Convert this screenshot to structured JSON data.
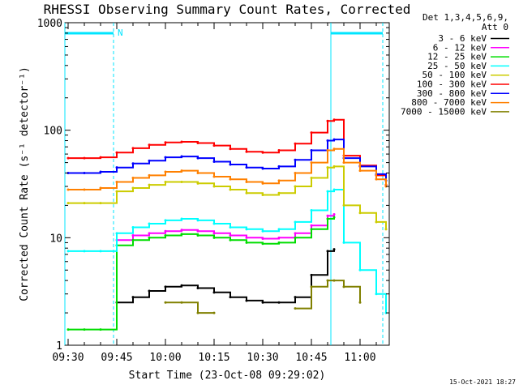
{
  "chart_data": {
    "type": "line",
    "title": "RHESSI Observing Summary Count Rates, Corrected",
    "xlabel": "Start Time (23-Oct-08 09:29:02)",
    "ylabel": "Corrected Count Rate (s⁻¹ detector⁻¹)",
    "y_scale": "log",
    "ylim": [
      1,
      1000
    ],
    "xlim": [
      "09:29",
      "11:09"
    ],
    "x_ticks": [
      "09:30",
      "09:45",
      "10:00",
      "10:15",
      "10:30",
      "10:45",
      "11:00"
    ],
    "y_ticks": [
      "1",
      "10",
      "100",
      "1000"
    ],
    "grid": false,
    "legend_position": "right",
    "legend_header": [
      "Det 1,3,4,5,6,9,",
      "Att 0"
    ],
    "footer_timestamp": "15-Oct-2021 18:27",
    "flag_text": "N",
    "flag_color": "#00e5ff",
    "bars": [
      {
        "start": "09:29",
        "end": "09:44"
      },
      {
        "start": "10:51",
        "end": "11:07"
      }
    ],
    "x": [
      "09:30",
      "09:35",
      "09:40",
      "09:45",
      "09:50",
      "09:55",
      "10:00",
      "10:05",
      "10:10",
      "10:15",
      "10:20",
      "10:25",
      "10:30",
      "10:35",
      "10:40",
      "10:45",
      "10:50",
      "10:52",
      "10:55",
      "11:00",
      "11:05",
      "11:08"
    ],
    "series": [
      {
        "name": "3 - 6 keV",
        "color": "#000000",
        "values": [
          null,
          null,
          null,
          2.5,
          2.8,
          3.2,
          3.5,
          3.6,
          3.4,
          3.1,
          2.8,
          2.6,
          2.5,
          2.5,
          2.8,
          4.5,
          7.5,
          7.8,
          null,
          null,
          null,
          null
        ]
      },
      {
        "name": "6 - 12 keV",
        "color": "#ff00ff",
        "values": [
          null,
          null,
          null,
          9.5,
          10.5,
          11,
          11.5,
          11.8,
          11.5,
          11,
          10.5,
          10,
          9.8,
          10,
          11,
          13,
          16,
          16.5,
          null,
          null,
          null,
          null
        ]
      },
      {
        "name": "12 - 25 keV",
        "color": "#00dd00",
        "values": [
          1.4,
          1.4,
          1.4,
          8.5,
          9.5,
          10,
          10.5,
          10.8,
          10.5,
          10,
          9.5,
          9,
          8.8,
          9,
          10,
          12,
          15,
          15.5,
          null,
          null,
          null,
          null
        ]
      },
      {
        "name": "25 - 50 keV",
        "color": "#00ffff",
        "values": [
          7.5,
          7.5,
          7.5,
          11,
          12.5,
          13.5,
          14.5,
          15,
          14.5,
          13.5,
          12.5,
          12,
          11.5,
          12,
          14,
          18,
          27,
          28,
          9,
          5,
          3,
          2
        ]
      },
      {
        "name": "50 - 100 keV",
        "color": "#cccc00",
        "values": [
          21,
          21,
          21,
          27,
          29,
          31,
          33,
          33,
          32,
          30,
          28,
          26,
          25,
          26,
          30,
          36,
          45,
          46,
          20,
          17,
          14,
          12
        ]
      },
      {
        "name": "100 - 300 keV",
        "color": "#ff0000",
        "values": [
          55,
          55,
          56,
          62,
          68,
          73,
          77,
          78,
          76,
          72,
          67,
          63,
          62,
          65,
          75,
          95,
          122,
          125,
          58,
          47,
          38,
          31
        ]
      },
      {
        "name": "300 - 800 keV",
        "color": "#0000ff",
        "values": [
          40,
          40,
          41,
          45,
          49,
          52,
          56,
          57,
          55,
          51,
          48,
          45,
          44,
          46,
          53,
          65,
          80,
          82,
          55,
          46,
          39,
          34
        ]
      },
      {
        "name": "800 - 7000 keV",
        "color": "#ff8000",
        "values": [
          28,
          28,
          29,
          33,
          36,
          38,
          41,
          42,
          40,
          37,
          35,
          33,
          32,
          34,
          40,
          50,
          65,
          67,
          50,
          42,
          35,
          30
        ]
      },
      {
        "name": "7000 - 15000 keV",
        "color": "#808000",
        "values": [
          null,
          null,
          null,
          null,
          null,
          null,
          2.5,
          2.5,
          2,
          2,
          null,
          null,
          null,
          null,
          2.2,
          3.5,
          4,
          4,
          3.5,
          2.5,
          null,
          null
        ]
      }
    ]
  }
}
